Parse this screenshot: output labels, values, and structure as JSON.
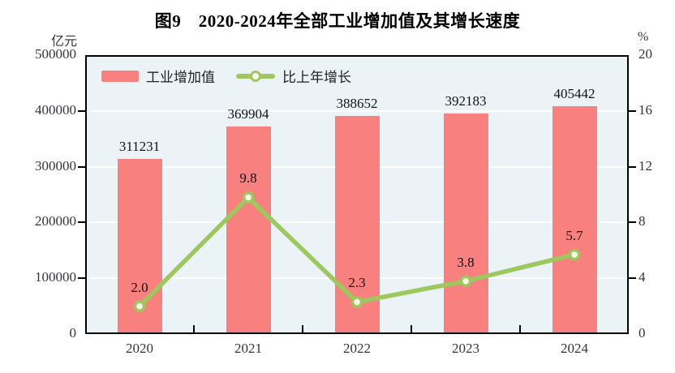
{
  "chart_data": {
    "type": "bar+line",
    "title": "图9　2020-2024年全部工业增加值及其增长速度",
    "categories": [
      "2020",
      "2021",
      "2022",
      "2023",
      "2024"
    ],
    "series": [
      {
        "name": "工业增加值",
        "type": "bar",
        "axis": "left",
        "unit": "亿元",
        "values": [
          311231,
          369904,
          388652,
          392183,
          405442
        ],
        "labels": [
          "311231",
          "369904",
          "388652",
          "392183",
          "405442"
        ],
        "color": "#f8807e"
      },
      {
        "name": "比上年增长",
        "type": "line",
        "axis": "right",
        "unit": "%",
        "values": [
          2.0,
          9.8,
          2.3,
          3.8,
          5.7
        ],
        "labels": [
          "2.0",
          "9.8",
          "2.3",
          "3.8",
          "5.7"
        ],
        "color": "#9cc85e",
        "marker": "circle-open"
      }
    ],
    "left_axis": {
      "label": "亿元",
      "min": 0,
      "max": 500000,
      "step": 100000,
      "ticks": [
        "500000",
        "400000",
        "300000",
        "200000",
        "100000",
        "0"
      ]
    },
    "right_axis": {
      "label": "%",
      "min": 0,
      "max": 20,
      "step": 4,
      "ticks": [
        "20",
        "16",
        "12",
        "8",
        "4",
        "0"
      ]
    },
    "grid": true,
    "legend_position": "top-left-inside"
  },
  "colors": {
    "bar": "#f8807e",
    "line": "#9cc85e",
    "marker_fill": "#fcfdf1",
    "plot_background": "#ecf3f7",
    "gridline": "#ffffff",
    "frame": "#000000",
    "tick_text": "#33343f",
    "label_text": "#111111"
  }
}
